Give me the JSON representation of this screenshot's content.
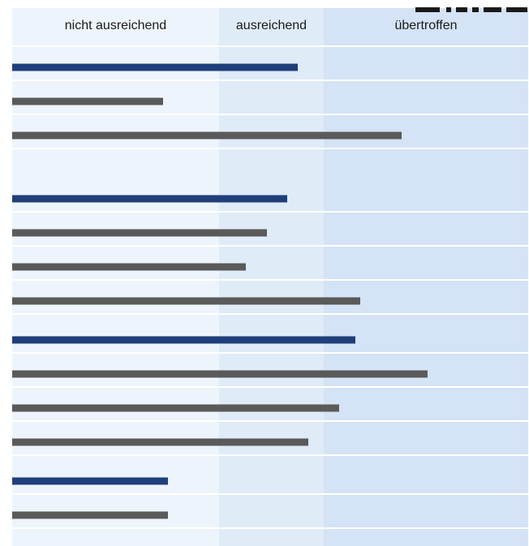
{
  "chart_data": {
    "type": "bar",
    "orientation": "horizontal",
    "bands": [
      {
        "label": "nicht ausreichend",
        "from": 0,
        "to": 255,
        "color": "#eef4fb"
      },
      {
        "label": "ausreichend",
        "from": 255,
        "to": 384,
        "color": "#e0ebf8"
      },
      {
        "label": "übertroffen",
        "from": 384,
        "to": 636,
        "color": "#d4e3f5"
      }
    ],
    "xlim": [
      0,
      636
    ],
    "grid": "horizontal row separators",
    "legend": "none",
    "colors": {
      "highlight": "#1f3f7a",
      "regular": "#5a5a5a"
    },
    "groups": [
      {
        "bars": [
          {
            "value": 352,
            "highlight": true
          },
          {
            "value": 186,
            "highlight": false
          },
          {
            "value": 480,
            "highlight": false
          }
        ]
      },
      {
        "bars": [
          {
            "value": 339,
            "highlight": true
          },
          {
            "value": 314,
            "highlight": false
          },
          {
            "value": 288,
            "highlight": false
          },
          {
            "value": 429,
            "highlight": false
          }
        ]
      },
      {
        "bars": [
          {
            "value": 423,
            "highlight": true
          },
          {
            "value": 512,
            "highlight": false
          },
          {
            "value": 403,
            "highlight": false
          },
          {
            "value": 365,
            "highlight": false
          }
        ]
      },
      {
        "bars": [
          {
            "value": 192,
            "highlight": true
          },
          {
            "value": 192,
            "highlight": false
          }
        ]
      }
    ]
  }
}
